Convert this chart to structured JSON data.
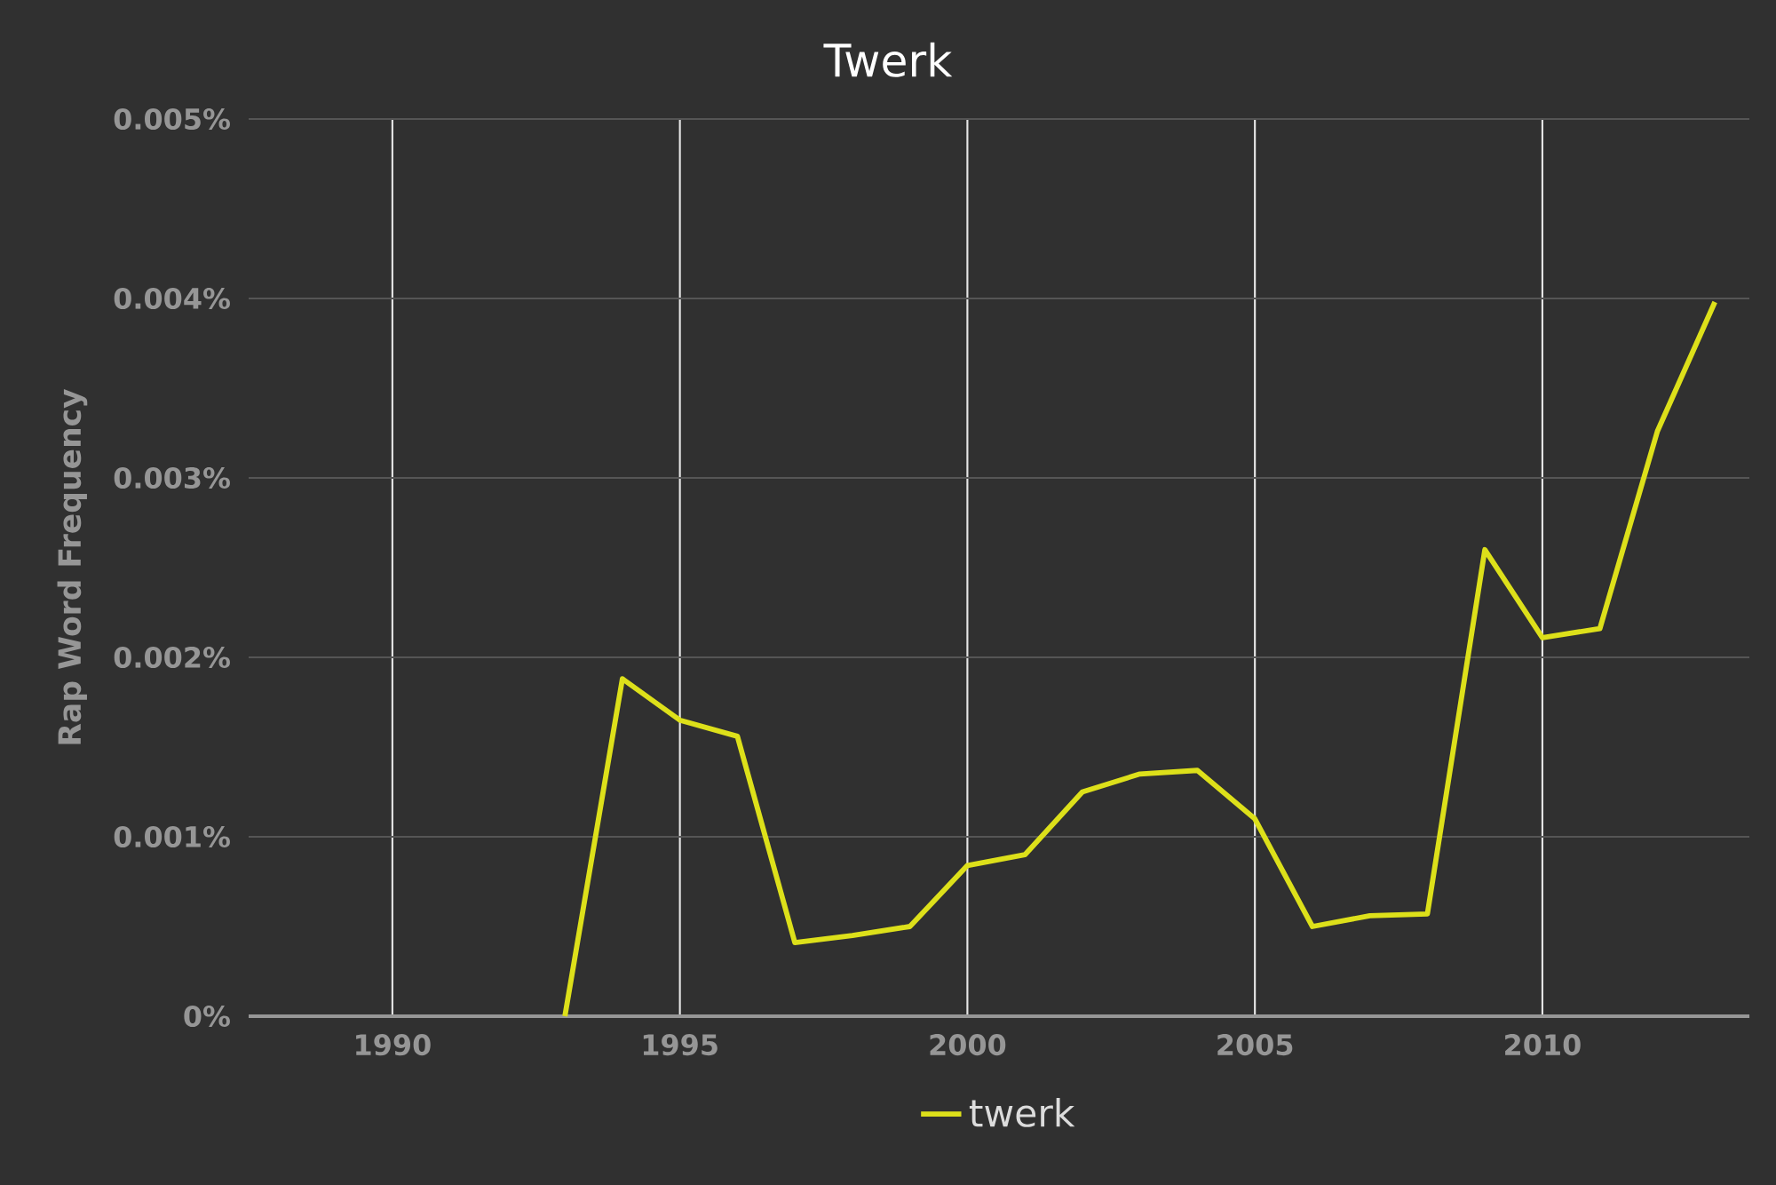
{
  "chart_data": {
    "type": "line",
    "title": "Twerk",
    "ylabel": "Rap Word Frequency",
    "x": [
      1993,
      1994,
      1995,
      1996,
      1997,
      1998,
      1999,
      2000,
      2001,
      2002,
      2003,
      2004,
      2005,
      2006,
      2007,
      2008,
      2009,
      2010,
      2011,
      2012,
      2013
    ],
    "series": [
      {
        "name": "twerk",
        "color": "#dde01a",
        "values": [
          0,
          0.00188,
          0.00165,
          0.00156,
          0.00041,
          0.00045,
          0.0005,
          0.00084,
          0.0009,
          0.00125,
          0.00135,
          0.00137,
          0.0011,
          0.0005,
          0.00056,
          0.00057,
          0.0026,
          0.00211,
          0.00216,
          0.00326,
          0.00398
        ]
      }
    ],
    "xlim": [
      1987.5,
      2013.6
    ],
    "xticks": [
      1990,
      1995,
      2000,
      2005,
      2010
    ],
    "ylim": [
      0,
      0.005
    ],
    "yticks": [
      {
        "value": 0,
        "label": "0%"
      },
      {
        "value": 0.001,
        "label": "0.001%"
      },
      {
        "value": 0.002,
        "label": "0.002%"
      },
      {
        "value": 0.003,
        "label": "0.003%"
      },
      {
        "value": 0.004,
        "label": "0.004%"
      },
      {
        "value": 0.005,
        "label": "0.005%"
      }
    ],
    "grid": true,
    "legend": "bottom",
    "marker": "none",
    "line_style": "solid"
  }
}
